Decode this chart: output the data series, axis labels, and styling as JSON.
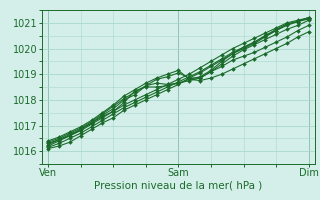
{
  "title": "Pression niveau de la mer( hPa )",
  "bg_color": "#d4eeea",
  "grid_color": "#aad8cc",
  "line_color": "#1a6b2a",
  "text_color": "#1a6b2a",
  "ylim": [
    1015.5,
    1021.5
  ],
  "yticks": [
    1016,
    1017,
    1018,
    1019,
    1020,
    1021
  ],
  "xtick_labels": [
    "Ven",
    "Sam",
    "Dim"
  ],
  "xtick_positions": [
    0.0,
    1.0,
    2.0
  ],
  "xlim": [
    -0.05,
    2.05
  ],
  "n_points": 25,
  "series": [
    [
      1016.3,
      1016.45,
      1016.6,
      1016.85,
      1017.1,
      1017.35,
      1017.55,
      1017.8,
      1018.0,
      1018.2,
      1018.4,
      1018.6,
      1018.8,
      1019.0,
      1019.25,
      1019.5,
      1019.75,
      1020.0,
      1020.2,
      1020.4,
      1020.6,
      1020.8,
      1021.0,
      1021.1,
      1021.2
    ],
    [
      1016.1,
      1016.2,
      1016.35,
      1016.6,
      1016.85,
      1017.1,
      1017.3,
      1017.6,
      1017.8,
      1018.0,
      1018.2,
      1018.4,
      1018.6,
      1018.85,
      1019.05,
      1019.3,
      1019.55,
      1019.8,
      1020.0,
      1020.2,
      1020.45,
      1020.7,
      1020.95,
      1021.05,
      1021.2
    ],
    [
      1016.15,
      1016.3,
      1016.5,
      1016.7,
      1016.95,
      1017.2,
      1017.45,
      1017.7,
      1017.9,
      1018.1,
      1018.3,
      1018.5,
      1018.7,
      1018.9,
      1019.1,
      1019.35,
      1019.6,
      1019.85,
      1020.05,
      1020.25,
      1020.5,
      1020.75,
      1020.95,
      1021.05,
      1021.15
    ],
    [
      1016.2,
      1016.4,
      1016.6,
      1016.8,
      1017.05,
      1017.3,
      1017.55,
      1017.9,
      1018.35,
      1018.5,
      1018.5,
      1018.55,
      1018.65,
      1018.8,
      1018.9,
      1019.15,
      1019.5,
      1019.8,
      1020.05,
      1020.25,
      1020.5,
      1020.7,
      1020.9,
      1021.05,
      1021.2
    ],
    [
      1016.25,
      1016.45,
      1016.65,
      1016.85,
      1017.1,
      1017.4,
      1017.65,
      1018.0,
      1018.2,
      1018.55,
      1018.65,
      1018.6,
      1018.65,
      1018.75,
      1018.85,
      1019.1,
      1019.4,
      1019.7,
      1019.95,
      1020.15,
      1020.35,
      1020.55,
      1020.75,
      1020.9,
      1021.1
    ],
    [
      1016.35,
      1016.5,
      1016.7,
      1016.9,
      1017.15,
      1017.45,
      1017.75,
      1018.05,
      1018.3,
      1018.55,
      1018.8,
      1018.9,
      1019.05,
      1018.85,
      1018.85,
      1019.1,
      1019.3,
      1019.55,
      1019.7,
      1019.85,
      1020.05,
      1020.25,
      1020.45,
      1020.7,
      1020.9
    ],
    [
      1016.4,
      1016.55,
      1016.75,
      1016.95,
      1017.2,
      1017.5,
      1017.8,
      1018.15,
      1018.4,
      1018.65,
      1018.85,
      1019.0,
      1019.15,
      1018.8,
      1018.75,
      1018.85,
      1019.0,
      1019.2,
      1019.4,
      1019.6,
      1019.8,
      1020.0,
      1020.2,
      1020.45,
      1020.65
    ]
  ],
  "figsize": [
    3.2,
    2.0
  ],
  "dpi": 100
}
